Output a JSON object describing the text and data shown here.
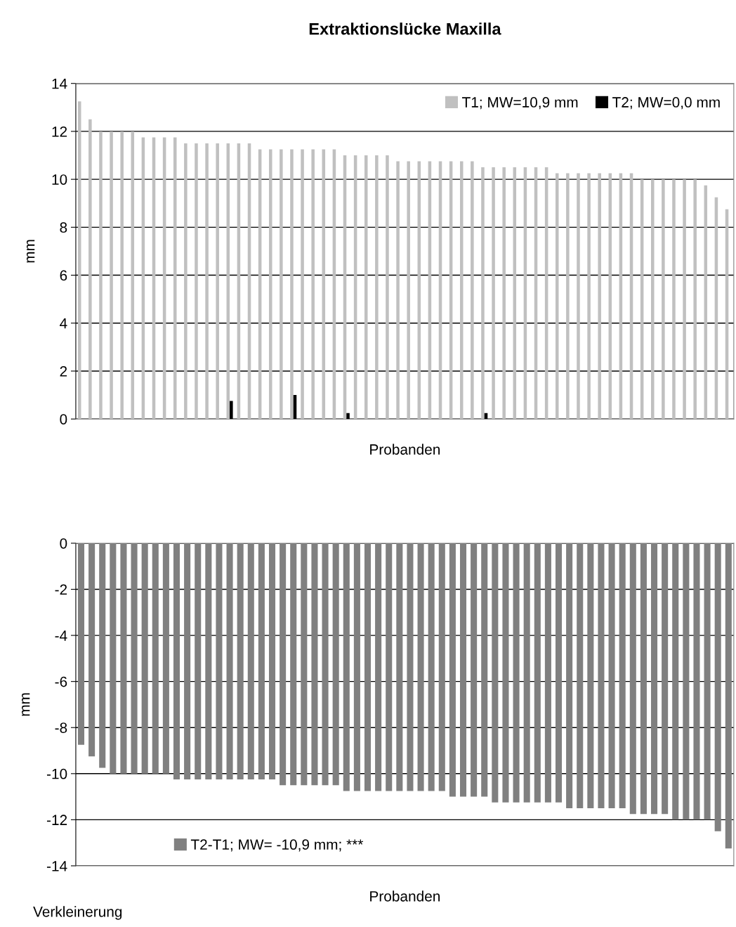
{
  "chart_data": [
    {
      "type": "bar",
      "title": "Extraktionslücke Maxilla",
      "xlabel": "Probanden",
      "ylabel": "mm",
      "categories": [
        null,
        null,
        null,
        null,
        null,
        null,
        null,
        null,
        null,
        null,
        null,
        null,
        null,
        null,
        null,
        null,
        null,
        null,
        null,
        null,
        null,
        null,
        null,
        null,
        null,
        null,
        null,
        null,
        null,
        null,
        null,
        null,
        null,
        null,
        null,
        null,
        null,
        null,
        null,
        null,
        null,
        null,
        null,
        null,
        null,
        null,
        null,
        null,
        null,
        null,
        null,
        null,
        null,
        null,
        null,
        null,
        null,
        null,
        null,
        null,
        null,
        null
      ],
      "series": [
        {
          "name": "T1; MW=10,9 mm",
          "color": "#c0c0c0",
          "values": [
            13.25,
            12.5,
            12,
            12,
            12,
            12,
            11.75,
            11.75,
            11.75,
            11.75,
            11.5,
            11.5,
            11.5,
            11.5,
            11.5,
            11.5,
            11.5,
            11.25,
            11.25,
            11.25,
            11.25,
            11.25,
            11.25,
            11.25,
            11.25,
            11,
            11,
            11,
            11,
            11,
            10.75,
            10.75,
            10.75,
            10.75,
            10.75,
            10.75,
            10.75,
            10.75,
            10.5,
            10.5,
            10.5,
            10.5,
            10.5,
            10.5,
            10.5,
            10.25,
            10.25,
            10.25,
            10.25,
            10.25,
            10.25,
            10.25,
            10.25,
            10,
            10,
            10,
            10,
            10,
            10,
            9.75,
            9.25,
            8.75
          ]
        },
        {
          "name": "T2; MW=0,0 mm",
          "color": "#000000",
          "values": [
            0,
            0,
            0,
            0,
            0,
            0,
            0,
            0,
            0,
            0,
            0,
            0,
            0,
            0,
            0.75,
            0,
            0,
            0,
            0,
            0,
            1,
            0,
            0,
            0,
            0,
            0.25,
            0,
            0,
            0,
            0,
            0,
            0,
            0,
            0,
            0,
            0,
            0,
            0,
            0.25,
            0,
            0,
            0,
            0,
            0,
            0,
            0,
            0,
            0,
            0,
            0,
            0,
            0,
            0,
            0,
            0,
            0,
            0,
            0,
            0,
            0,
            0,
            0
          ]
        }
      ],
      "ylim": [
        0,
        14
      ],
      "yticks": [
        0,
        2,
        4,
        6,
        8,
        10,
        12,
        14
      ],
      "grid": "y",
      "legend": "top right"
    },
    {
      "type": "bar",
      "xlabel": "Probanden",
      "ylabel": "mm",
      "categories": [
        null,
        null,
        null,
        null,
        null,
        null,
        null,
        null,
        null,
        null,
        null,
        null,
        null,
        null,
        null,
        null,
        null,
        null,
        null,
        null,
        null,
        null,
        null,
        null,
        null,
        null,
        null,
        null,
        null,
        null,
        null,
        null,
        null,
        null,
        null,
        null,
        null,
        null,
        null,
        null,
        null,
        null,
        null,
        null,
        null,
        null,
        null,
        null,
        null,
        null,
        null,
        null,
        null,
        null,
        null,
        null,
        null,
        null,
        null,
        null,
        null,
        null
      ],
      "series": [
        {
          "name": "T2-T1; MW= -10,9 mm; ***",
          "color": "#808080",
          "values": [
            -8.75,
            -9.25,
            -9.75,
            -10,
            -10,
            -10,
            -10,
            -10,
            -10,
            -10.25,
            -10.25,
            -10.25,
            -10.25,
            -10.25,
            -10.25,
            -10.25,
            -10.25,
            -10.25,
            -10.25,
            -10.5,
            -10.5,
            -10.5,
            -10.5,
            -10.5,
            -10.5,
            -10.75,
            -10.75,
            -10.75,
            -10.75,
            -10.75,
            -10.75,
            -10.75,
            -10.75,
            -10.75,
            -10.75,
            -11,
            -11,
            -11,
            -11,
            -11.25,
            -11.25,
            -11.25,
            -11.25,
            -11.25,
            -11.25,
            -11.25,
            -11.5,
            -11.5,
            -11.5,
            -11.5,
            -11.5,
            -11.5,
            -11.75,
            -11.75,
            -11.75,
            -11.75,
            -12,
            -12,
            -12,
            -12,
            -12.5,
            -13.25
          ]
        }
      ],
      "ylim": [
        -14,
        0
      ],
      "yticks": [
        -14,
        -12,
        -10,
        -8,
        -6,
        -4,
        -2,
        0
      ],
      "grid": "y",
      "legend": "bottom left",
      "annotations": [
        "Verkleinerung"
      ]
    }
  ]
}
